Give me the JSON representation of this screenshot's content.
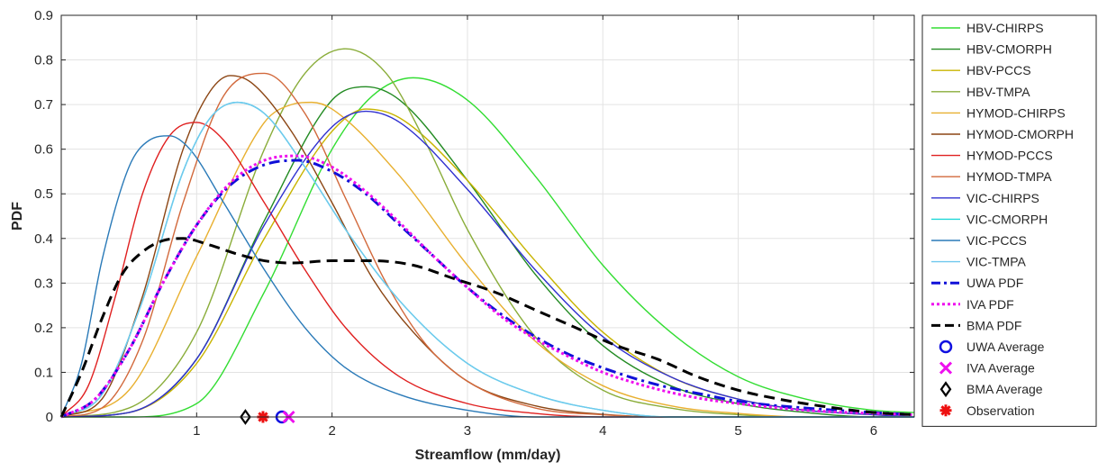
{
  "chart_data": {
    "type": "line",
    "title": "",
    "xlabel": "Streamflow (mm/day)",
    "ylabel": "PDF",
    "xlim": [
      0,
      6.3
    ],
    "ylim": [
      0,
      0.9
    ],
    "xticks": [
      1,
      2,
      3,
      4,
      5,
      6
    ],
    "xtick_labels": [
      "1",
      "2",
      "3",
      "4",
      "5",
      "6"
    ],
    "yticks": [
      0,
      0.1,
      0.2,
      0.3,
      0.4,
      0.5,
      0.6,
      0.7,
      0.8,
      0.9
    ],
    "ytick_labels": [
      "0",
      "0.1",
      "0.2",
      "0.3",
      "0.4",
      "0.5",
      "0.6",
      "0.7",
      "0.8",
      "0.9"
    ],
    "grid": true,
    "legend_position": "outside-right",
    "series": [
      {
        "name": "HBV-CHIRPS",
        "color": "#33dd33",
        "style": "solid",
        "x": [
          0,
          0.5,
          1.0,
          1.5,
          2.0,
          2.3,
          2.6,
          3.0,
          3.5,
          4.0,
          4.5,
          5.0,
          5.5,
          6.0,
          6.3
        ],
        "y": [
          0,
          0.0,
          0.03,
          0.28,
          0.6,
          0.72,
          0.76,
          0.71,
          0.54,
          0.34,
          0.19,
          0.09,
          0.04,
          0.015,
          0.01
        ]
      },
      {
        "name": "HBV-CMORPH",
        "color": "#238b23",
        "style": "solid",
        "x": [
          0,
          0.5,
          1.0,
          1.5,
          2.0,
          2.25,
          2.5,
          3.0,
          3.5,
          4.0,
          4.5,
          5.0,
          5.5,
          6.0,
          6.3
        ],
        "y": [
          0,
          0.01,
          0.13,
          0.44,
          0.71,
          0.74,
          0.71,
          0.53,
          0.32,
          0.16,
          0.07,
          0.03,
          0.01,
          0.0,
          0.0
        ]
      },
      {
        "name": "HBV-PCCS",
        "color": "#c8b400",
        "style": "solid",
        "x": [
          0,
          0.5,
          1.0,
          1.5,
          2.0,
          2.25,
          2.5,
          3.0,
          3.5,
          4.0,
          4.5,
          5.0,
          5.5,
          6.0,
          6.3
        ],
        "y": [
          0,
          0.01,
          0.12,
          0.4,
          0.64,
          0.69,
          0.67,
          0.53,
          0.35,
          0.19,
          0.09,
          0.04,
          0.015,
          0.005,
          0.0
        ]
      },
      {
        "name": "HBV-TMPA",
        "color": "#8aad3a",
        "style": "solid",
        "x": [
          0,
          0.5,
          1.0,
          1.5,
          1.8,
          2.1,
          2.4,
          2.7,
          3.0,
          3.5,
          4.0,
          4.5,
          5.0,
          5.5,
          6.0,
          6.3
        ],
        "y": [
          0,
          0.02,
          0.19,
          0.6,
          0.77,
          0.825,
          0.77,
          0.61,
          0.42,
          0.18,
          0.06,
          0.02,
          0.005,
          0.0,
          0.0,
          0.0
        ]
      },
      {
        "name": "HYMOD-CHIRPS",
        "color": "#e8b030",
        "style": "solid",
        "x": [
          0,
          0.5,
          1.0,
          1.5,
          1.7,
          1.85,
          2.0,
          2.5,
          3.0,
          3.5,
          4.0,
          4.5,
          5.0,
          5.5,
          6.0,
          6.3
        ],
        "y": [
          0,
          0.06,
          0.36,
          0.66,
          0.7,
          0.705,
          0.69,
          0.54,
          0.34,
          0.17,
          0.07,
          0.025,
          0.008,
          0.0,
          0.0,
          0.0
        ]
      },
      {
        "name": "HYMOD-CMORPH",
        "color": "#8b4513",
        "style": "solid",
        "x": [
          0,
          0.3,
          0.6,
          0.9,
          1.1,
          1.25,
          1.4,
          1.7,
          2.0,
          2.3,
          2.6,
          3.0,
          3.5,
          4.0,
          4.5,
          5.0,
          5.5,
          6.0,
          6.3
        ],
        "y": [
          0,
          0.04,
          0.27,
          0.6,
          0.73,
          0.765,
          0.75,
          0.64,
          0.48,
          0.31,
          0.19,
          0.08,
          0.025,
          0.006,
          0.0,
          0.0,
          0.0,
          0.0,
          0.0
        ]
      },
      {
        "name": "HYMOD-PCCS",
        "color": "#e02020",
        "style": "solid",
        "x": [
          0,
          0.2,
          0.4,
          0.6,
          0.8,
          1.0,
          1.2,
          1.5,
          1.8,
          2.1,
          2.5,
          3.0,
          3.5,
          4.0,
          4.5,
          5.0,
          5.5,
          6.0,
          6.3
        ],
        "y": [
          0,
          0.07,
          0.27,
          0.5,
          0.63,
          0.66,
          0.62,
          0.48,
          0.33,
          0.2,
          0.09,
          0.03,
          0.008,
          0.0,
          0.0,
          0.0,
          0.0,
          0.0,
          0.0
        ]
      },
      {
        "name": "HYMOD-TMPA",
        "color": "#d2693c",
        "style": "solid",
        "x": [
          0,
          0.3,
          0.6,
          0.9,
          1.2,
          1.5,
          1.8,
          2.1,
          2.4,
          2.7,
          3.0,
          3.5,
          4.0,
          4.5,
          5.0,
          5.5,
          6.0,
          6.3
        ],
        "y": [
          0,
          0.02,
          0.17,
          0.48,
          0.72,
          0.77,
          0.68,
          0.49,
          0.3,
          0.16,
          0.08,
          0.02,
          0.005,
          0.0,
          0.0,
          0.0,
          0.0,
          0.0
        ]
      },
      {
        "name": "VIC-CHIRPS",
        "color": "#3030d0",
        "style": "solid",
        "x": [
          0,
          0.5,
          1.0,
          1.5,
          2.0,
          2.25,
          2.5,
          3.0,
          3.5,
          4.0,
          4.5,
          5.0,
          5.5,
          6.0,
          6.3
        ],
        "y": [
          0,
          0.01,
          0.13,
          0.43,
          0.65,
          0.685,
          0.66,
          0.51,
          0.33,
          0.18,
          0.09,
          0.04,
          0.015,
          0.005,
          0.0
        ]
      },
      {
        "name": "VIC-CMORPH",
        "color": "#20d8d8",
        "style": "solid",
        "x": [
          0,
          0.3,
          0.6,
          0.9,
          1.1,
          1.3,
          1.5,
          1.8,
          2.1,
          2.5,
          3.0,
          3.5,
          4.0,
          4.5,
          5.0,
          5.5,
          6.0,
          6.3
        ],
        "y": [
          0,
          0.05,
          0.26,
          0.55,
          0.67,
          0.705,
          0.68,
          0.56,
          0.42,
          0.26,
          0.12,
          0.05,
          0.015,
          0.0,
          0.0,
          0.0,
          0.0,
          0.0
        ]
      },
      {
        "name": "VIC-PCCS",
        "color": "#2a7ab8",
        "style": "solid",
        "x": [
          0,
          0.15,
          0.3,
          0.5,
          0.65,
          0.8,
          0.95,
          1.2,
          1.5,
          1.8,
          2.1,
          2.5,
          3.0,
          3.5,
          4.0,
          4.5,
          5.0,
          5.5,
          6.0,
          6.3
        ],
        "y": [
          0,
          0.12,
          0.35,
          0.56,
          0.62,
          0.63,
          0.6,
          0.48,
          0.33,
          0.2,
          0.11,
          0.05,
          0.015,
          0.0,
          0.0,
          0.0,
          0.0,
          0.0,
          0.0,
          0.0
        ]
      },
      {
        "name": "VIC-TMPA",
        "color": "#70c8ee",
        "style": "solid",
        "x": [
          0,
          0.3,
          0.6,
          0.9,
          1.1,
          1.3,
          1.5,
          1.8,
          2.1,
          2.5,
          3.0,
          3.5,
          4.0,
          4.5,
          5.0,
          5.5,
          6.0,
          6.3
        ],
        "y": [
          0,
          0.05,
          0.26,
          0.55,
          0.67,
          0.705,
          0.68,
          0.56,
          0.42,
          0.26,
          0.12,
          0.05,
          0.015,
          0.0,
          0.0,
          0.0,
          0.0,
          0.0
        ]
      },
      {
        "name": "UWA PDF",
        "color": "#1010d8",
        "style": "dashdot",
        "x": [
          0,
          0.25,
          0.5,
          0.75,
          1.0,
          1.25,
          1.5,
          1.75,
          2.0,
          2.25,
          2.5,
          2.75,
          3.0,
          3.25,
          3.5,
          3.75,
          4.0,
          4.25,
          4.5,
          4.75,
          5.0,
          5.5,
          6.0,
          6.3
        ],
        "y": [
          0,
          0.04,
          0.15,
          0.3,
          0.43,
          0.52,
          0.565,
          0.575,
          0.55,
          0.5,
          0.43,
          0.36,
          0.29,
          0.23,
          0.18,
          0.14,
          0.11,
          0.085,
          0.065,
          0.05,
          0.035,
          0.02,
          0.01,
          0.005
        ]
      },
      {
        "name": "IVA PDF",
        "color": "#ee10ee",
        "style": "dotted",
        "x": [
          0,
          0.25,
          0.5,
          0.75,
          1.0,
          1.25,
          1.5,
          1.75,
          2.0,
          2.25,
          2.5,
          2.75,
          3.0,
          3.25,
          3.5,
          3.75,
          4.0,
          4.25,
          4.5,
          4.75,
          5.0,
          5.5,
          6.0,
          6.3
        ],
        "y": [
          0,
          0.04,
          0.15,
          0.3,
          0.43,
          0.525,
          0.575,
          0.585,
          0.56,
          0.505,
          0.435,
          0.36,
          0.29,
          0.225,
          0.175,
          0.135,
          0.1,
          0.075,
          0.055,
          0.04,
          0.03,
          0.015,
          0.008,
          0.005
        ]
      },
      {
        "name": "BMA PDF",
        "color": "#000000",
        "style": "dashed",
        "x": [
          0,
          0.15,
          0.3,
          0.45,
          0.6,
          0.75,
          0.9,
          1.1,
          1.3,
          1.5,
          1.7,
          2.0,
          2.3,
          2.6,
          2.9,
          3.2,
          3.5,
          3.8,
          4.1,
          4.4,
          4.7,
          5.0,
          5.3,
          5.6,
          6.0,
          6.3
        ],
        "y": [
          0,
          0.1,
          0.22,
          0.32,
          0.37,
          0.395,
          0.4,
          0.385,
          0.365,
          0.35,
          0.345,
          0.35,
          0.35,
          0.34,
          0.31,
          0.28,
          0.24,
          0.2,
          0.16,
          0.13,
          0.09,
          0.06,
          0.04,
          0.025,
          0.01,
          0.005
        ]
      }
    ],
    "markers": [
      {
        "name": "UWA Average",
        "shape": "circle",
        "color": "#1010e0",
        "x": 1.63,
        "y": 0
      },
      {
        "name": "IVA Average",
        "shape": "x",
        "color": "#ee10ee",
        "x": 1.68,
        "y": 0
      },
      {
        "name": "BMA Average",
        "shape": "diamond",
        "color": "#000000",
        "x": 1.36,
        "y": 0
      },
      {
        "name": "Observation",
        "shape": "asterisk",
        "color": "#ee1010",
        "x": 1.49,
        "y": 0
      }
    ]
  }
}
